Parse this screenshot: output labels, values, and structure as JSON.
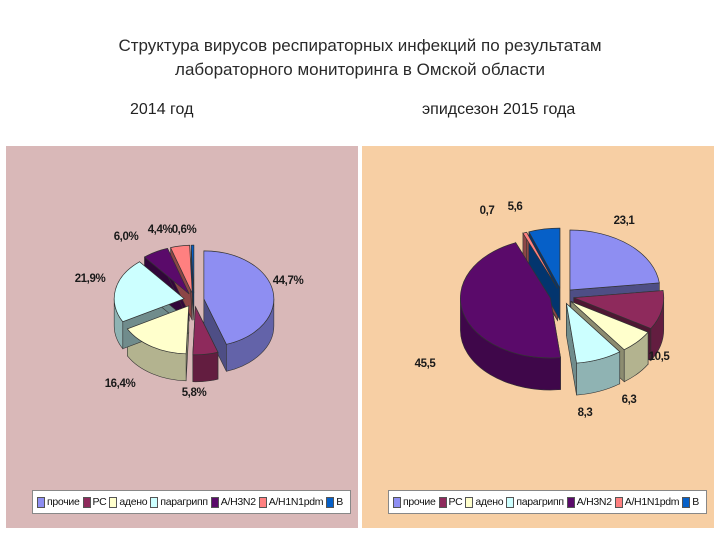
{
  "title": {
    "line1": "Структура вирусов респираторных инфекций по результатам",
    "line2": "лабораторного мониторинга в Омской области"
  },
  "colors": [
    "#8E8EF2",
    "#8E2A5C",
    "#FFFFCC",
    "#CCFFFF",
    "#5A0A6A",
    "#FF8080",
    "#0660C8"
  ],
  "chart_data": [
    {
      "type": "pie",
      "title": "2014 год",
      "categories": [
        "прочие",
        "РС",
        "адено",
        "парагрипп",
        "А/H3N2",
        "А/H1N1pdm",
        "В"
      ],
      "values": [
        44.7,
        5.8,
        16.4,
        21.9,
        6.0,
        4.4,
        0.6
      ],
      "data_labels": [
        "44,7%",
        "5,8%",
        "16,4%",
        "21,9%",
        "6,0%",
        "4,4%",
        "0,6%"
      ],
      "exploded": true,
      "legend_position": "bottom"
    },
    {
      "type": "pie",
      "title": "эпидсезон 2015 года",
      "categories": [
        "прочие",
        "РС",
        "адено",
        "парагрипп",
        "А/H3N2",
        "А/H1N1pdm",
        "В"
      ],
      "values": [
        23.1,
        10.5,
        6.3,
        8.3,
        45.5,
        0.7,
        5.6
      ],
      "data_labels": [
        "23,1",
        "10,5",
        "6,3",
        "8,3",
        "45,5",
        "0,7",
        "5,6"
      ],
      "exploded": true,
      "legend_position": "bottom"
    }
  ]
}
